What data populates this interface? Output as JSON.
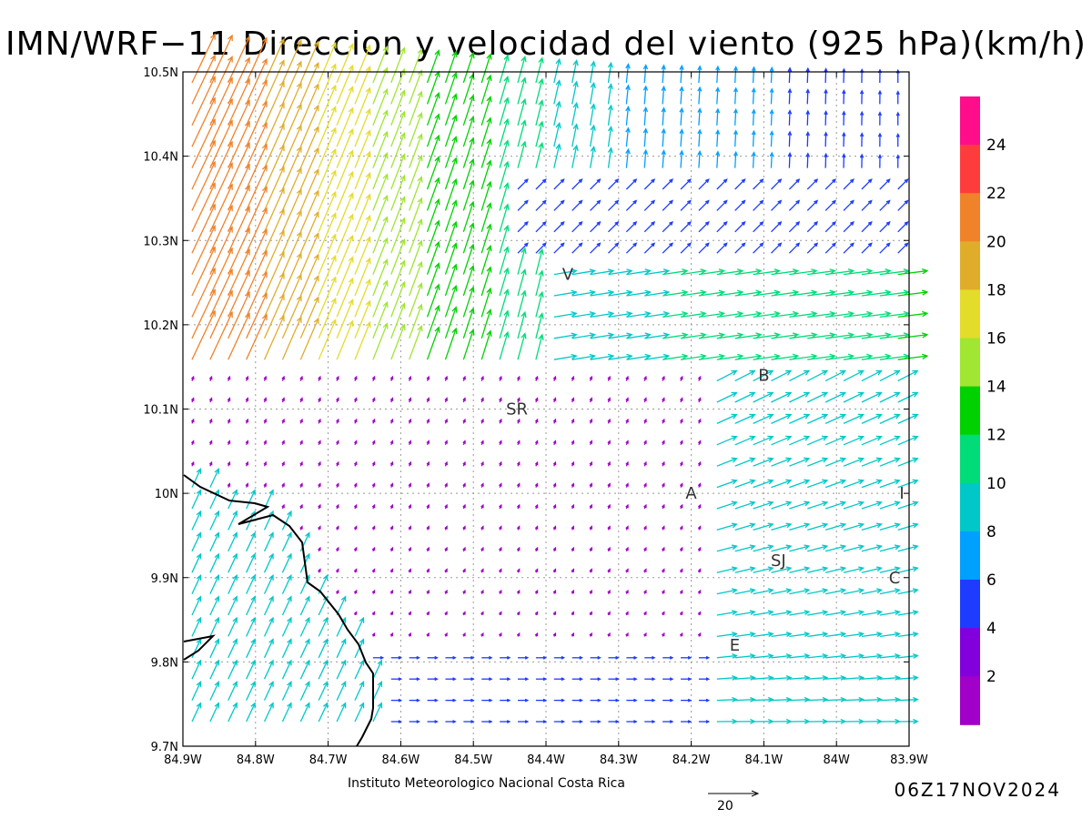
{
  "title": "IMN/WRF−11 Direccion y velocidad del viento (925 hPa)(km/h)",
  "footer": {
    "institute": "Instituto Meteorologico Nacional Costa Rica",
    "valid_time": "06Z17NOV2024",
    "reference_vector_label": "20"
  },
  "axes": {
    "lat_labels": [
      "10.5N",
      "10.4N",
      "10.3N",
      "10.2N",
      "10.1N",
      "10N",
      "9.9N",
      "9.8N",
      "9.7N"
    ],
    "lon_labels": [
      "84.9W",
      "84.8W",
      "84.7W",
      "84.6W",
      "84.5W",
      "84.4W",
      "84.3W",
      "84.2W",
      "84.1W",
      "84W",
      "83.9W"
    ],
    "lat_range": [
      9.7,
      10.5
    ],
    "lon_range": [
      -84.9,
      -83.9
    ],
    "grid": "dotted"
  },
  "places": [
    {
      "label": "V",
      "lon": -84.37,
      "lat": 10.26
    },
    {
      "label": "SR",
      "lon": -84.44,
      "lat": 10.1
    },
    {
      "label": "B",
      "lon": -84.1,
      "lat": 10.14
    },
    {
      "label": "A",
      "lon": -84.2,
      "lat": 10.0
    },
    {
      "label": "I",
      "lon": -83.91,
      "lat": 10.0
    },
    {
      "label": "SJ",
      "lon": -84.08,
      "lat": 9.92
    },
    {
      "label": "C",
      "lon": -83.92,
      "lat": 9.9
    },
    {
      "label": "E",
      "lon": -84.14,
      "lat": 9.82
    }
  ],
  "legend": {
    "tick_labels": [
      "24",
      "22",
      "20",
      "18",
      "16",
      "14",
      "12",
      "10",
      "8",
      "6",
      "4",
      "2"
    ],
    "colors": [
      "#ff0d8a",
      "#ff3c3c",
      "#f0822a",
      "#e0ad2a",
      "#e3dc2a",
      "#a0e632",
      "#00d200",
      "#00dc78",
      "#00c8c8",
      "#00a0ff",
      "#1e3cff",
      "#8200dc",
      "#a000c8"
    ]
  },
  "wind_field": {
    "units": "km/h",
    "reference_vector_kmh": 20
  }
}
